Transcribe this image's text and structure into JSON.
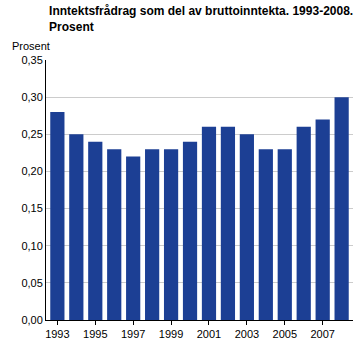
{
  "chart_data": {
    "type": "bar",
    "title": "Inntektsfrådrag som del av bruttoinntekta. 1993-2008.\nProsent",
    "y_label": "Prosent",
    "categories": [
      "1993",
      null,
      "1995",
      null,
      "1997",
      null,
      "1999",
      null,
      "2001",
      null,
      "2003",
      null,
      "2005",
      null,
      "2007",
      null
    ],
    "values": [
      0.28,
      0.25,
      0.24,
      0.23,
      0.22,
      0.23,
      0.23,
      0.24,
      0.26,
      0.26,
      0.25,
      0.23,
      0.23,
      0.26,
      0.27,
      0.3
    ],
    "color": "#1c3f94",
    "ylim": [
      0,
      0.35
    ],
    "yticks": [
      {
        "value": 0,
        "label": "0,00"
      },
      {
        "value": 0.05,
        "label": "0,05"
      },
      {
        "value": 0.1,
        "label": "0,10"
      },
      {
        "value": 0.15,
        "label": "0,15"
      },
      {
        "value": 0.2,
        "label": "0,20"
      },
      {
        "value": 0.25,
        "label": "0,25"
      },
      {
        "value": 0.3,
        "label": "0,30"
      },
      {
        "value": 0.35,
        "label": "0,35"
      }
    ],
    "grid": true
  }
}
